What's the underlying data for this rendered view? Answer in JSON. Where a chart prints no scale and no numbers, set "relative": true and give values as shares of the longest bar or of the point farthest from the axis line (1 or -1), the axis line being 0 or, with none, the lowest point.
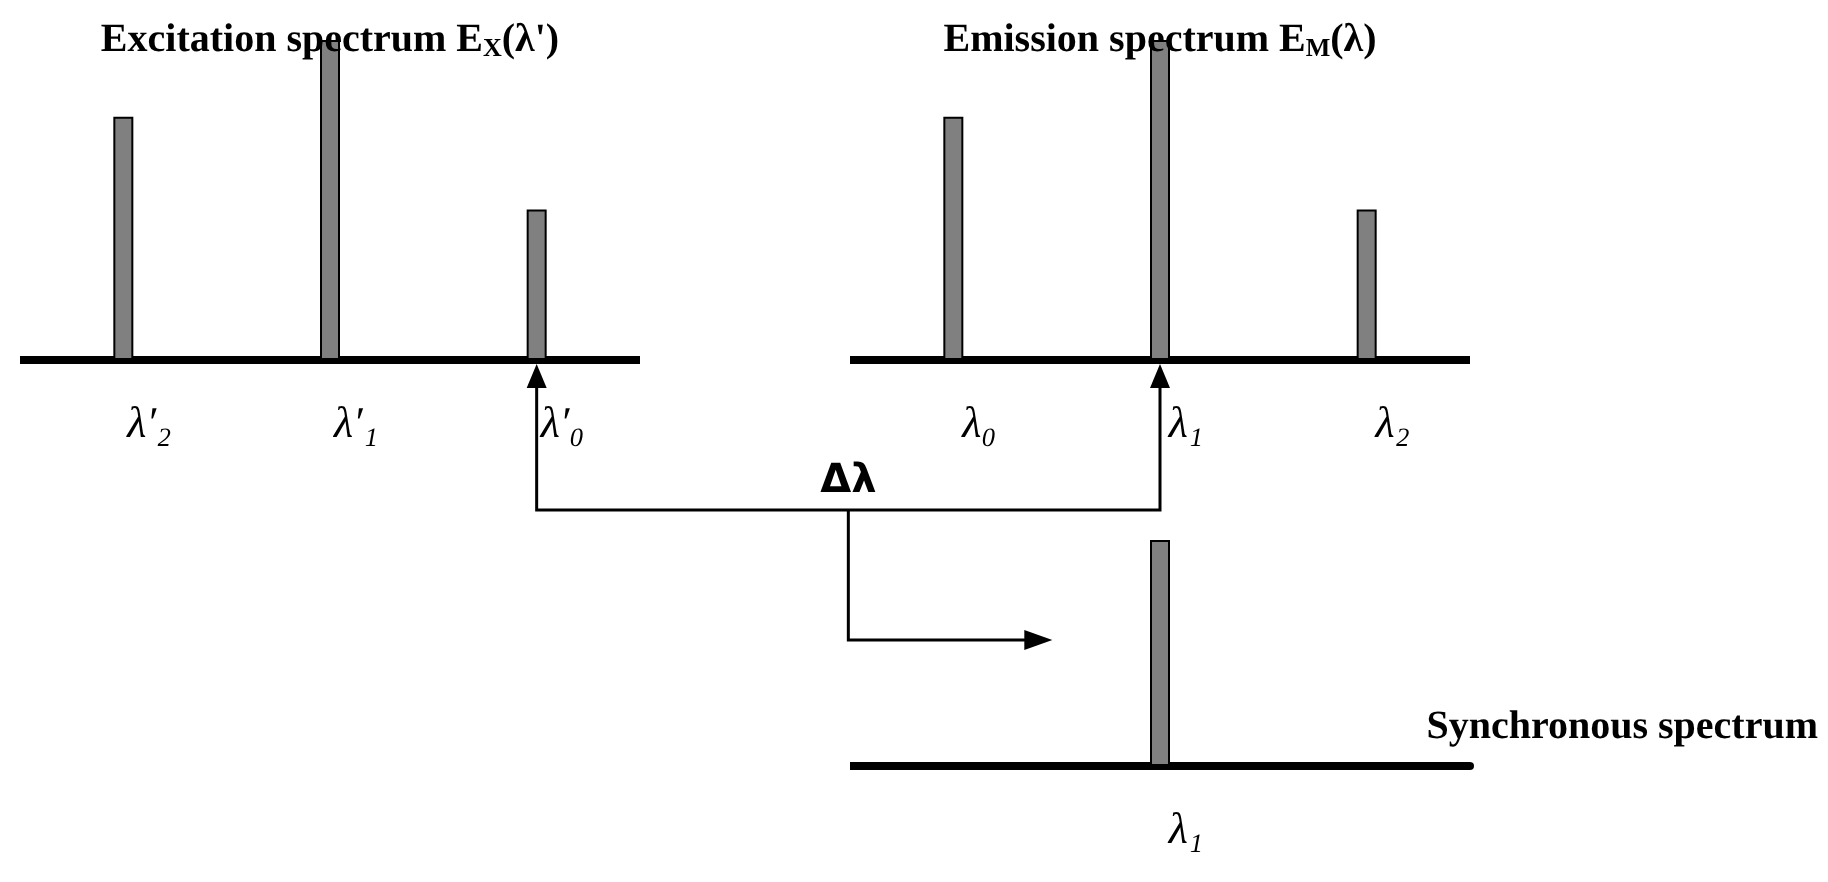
{
  "chart_data": [
    {
      "type": "bar",
      "title": "Excitation spectrum E$_{X}$(λ')",
      "categories": [
        "λ′₂",
        "λ′₁",
        "λ′₀"
      ],
      "values": [
        0.76,
        1,
        0.47
      ],
      "color": "#808080",
      "relative": true,
      "tick_labels": "x",
      "annotations": [
        "Δλ"
      ]
    },
    {
      "type": "bar",
      "title": "Emission spectrum E$_{M}$(λ)",
      "categories": [
        "λ₀",
        "λ₁",
        "λ₂"
      ],
      "values": [
        0.76,
        1,
        0.47
      ],
      "color": "#808080",
      "relative": true,
      "tick_labels": "x"
    },
    {
      "type": "bar",
      "title": "Synchronous spectrum",
      "categories": [
        "λ₁"
      ],
      "values": [
        1
      ],
      "color": "#808080",
      "relative": true,
      "tick_labels": "x"
    }
  ]
}
